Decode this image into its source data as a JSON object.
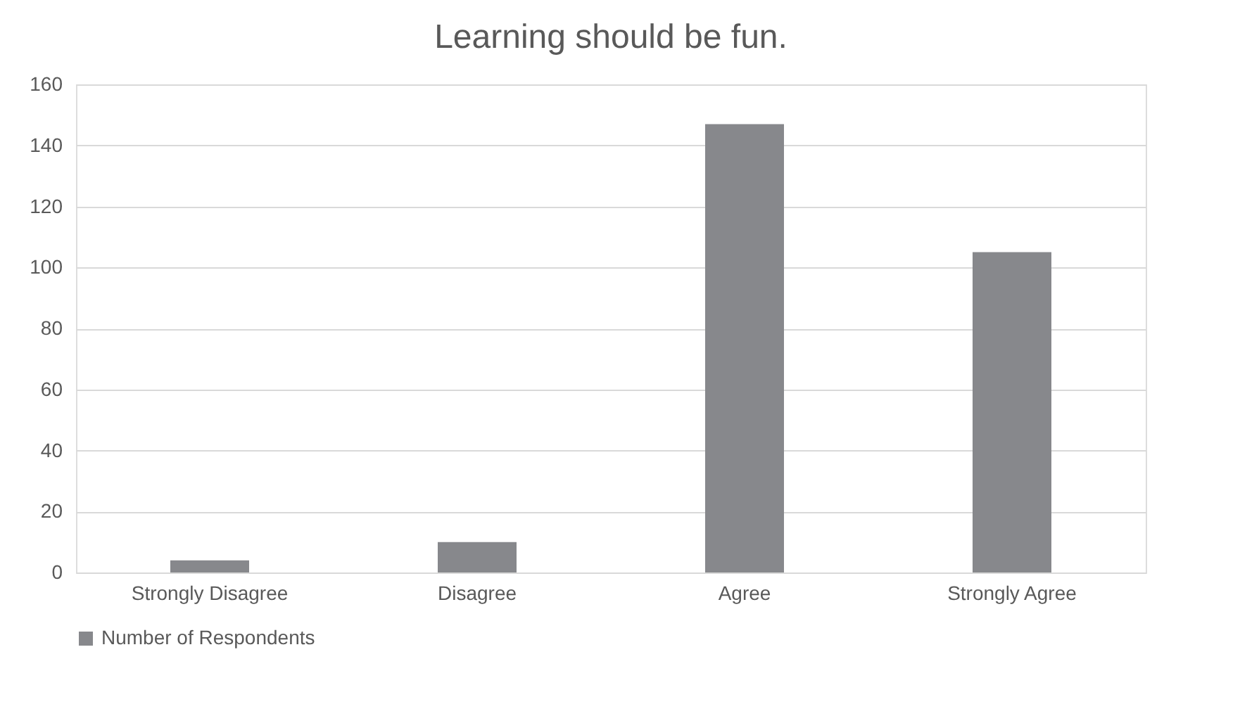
{
  "chart_data": {
    "type": "bar",
    "title": "Learning should be fun.",
    "categories": [
      "Strongly Disagree",
      "Disagree",
      "Agree",
      "Strongly Agree"
    ],
    "series": [
      {
        "name": "Number of Respondents",
        "color": "#87888c",
        "values": [
          4,
          10,
          147,
          105
        ]
      }
    ],
    "ylim": [
      0,
      160
    ],
    "yticks": [
      0,
      20,
      40,
      60,
      80,
      100,
      120,
      140,
      160
    ],
    "grid": "y",
    "legend": "bottom"
  }
}
